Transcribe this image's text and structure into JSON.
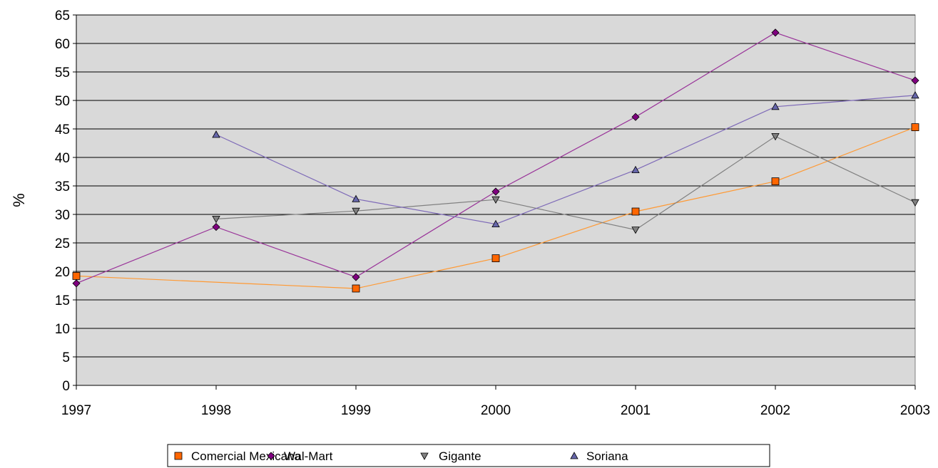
{
  "chart_data": {
    "type": "line",
    "title": "",
    "xlabel": "",
    "ylabel": "%",
    "x": [
      "1997",
      "1998",
      "1999",
      "2000",
      "2001",
      "2002",
      "2003"
    ],
    "ylim": [
      0,
      65
    ],
    "yticks": [
      0,
      5,
      10,
      15,
      20,
      25,
      30,
      35,
      40,
      45,
      50,
      55,
      60,
      65
    ],
    "grid": true,
    "plot_background": "#d9d9d9",
    "legend_position": "bottom",
    "series": [
      {
        "name": "Comercial Mexicana",
        "color": "#ff6600",
        "line_color": "#ff9933",
        "marker": "square",
        "values": [
          19.2,
          null,
          17.0,
          22.3,
          30.5,
          35.8,
          45.3
        ]
      },
      {
        "name": "Wal-Mart",
        "color": "#800080",
        "line_color": "#993399",
        "marker": "diamond",
        "values": [
          17.9,
          27.8,
          19.0,
          34.0,
          47.1,
          61.9,
          53.5
        ]
      },
      {
        "name": "Gigante",
        "color": "#808080",
        "line_color": "#808080",
        "marker": "triangle-down",
        "values": [
          null,
          29.2,
          30.6,
          32.6,
          27.3,
          43.7,
          32.1
        ]
      },
      {
        "name": "Soriana",
        "color": "#6666aa",
        "line_color": "#7e6ab8",
        "marker": "triangle-up",
        "values": [
          null,
          44.0,
          32.7,
          28.3,
          37.8,
          48.9,
          50.9
        ]
      }
    ]
  }
}
